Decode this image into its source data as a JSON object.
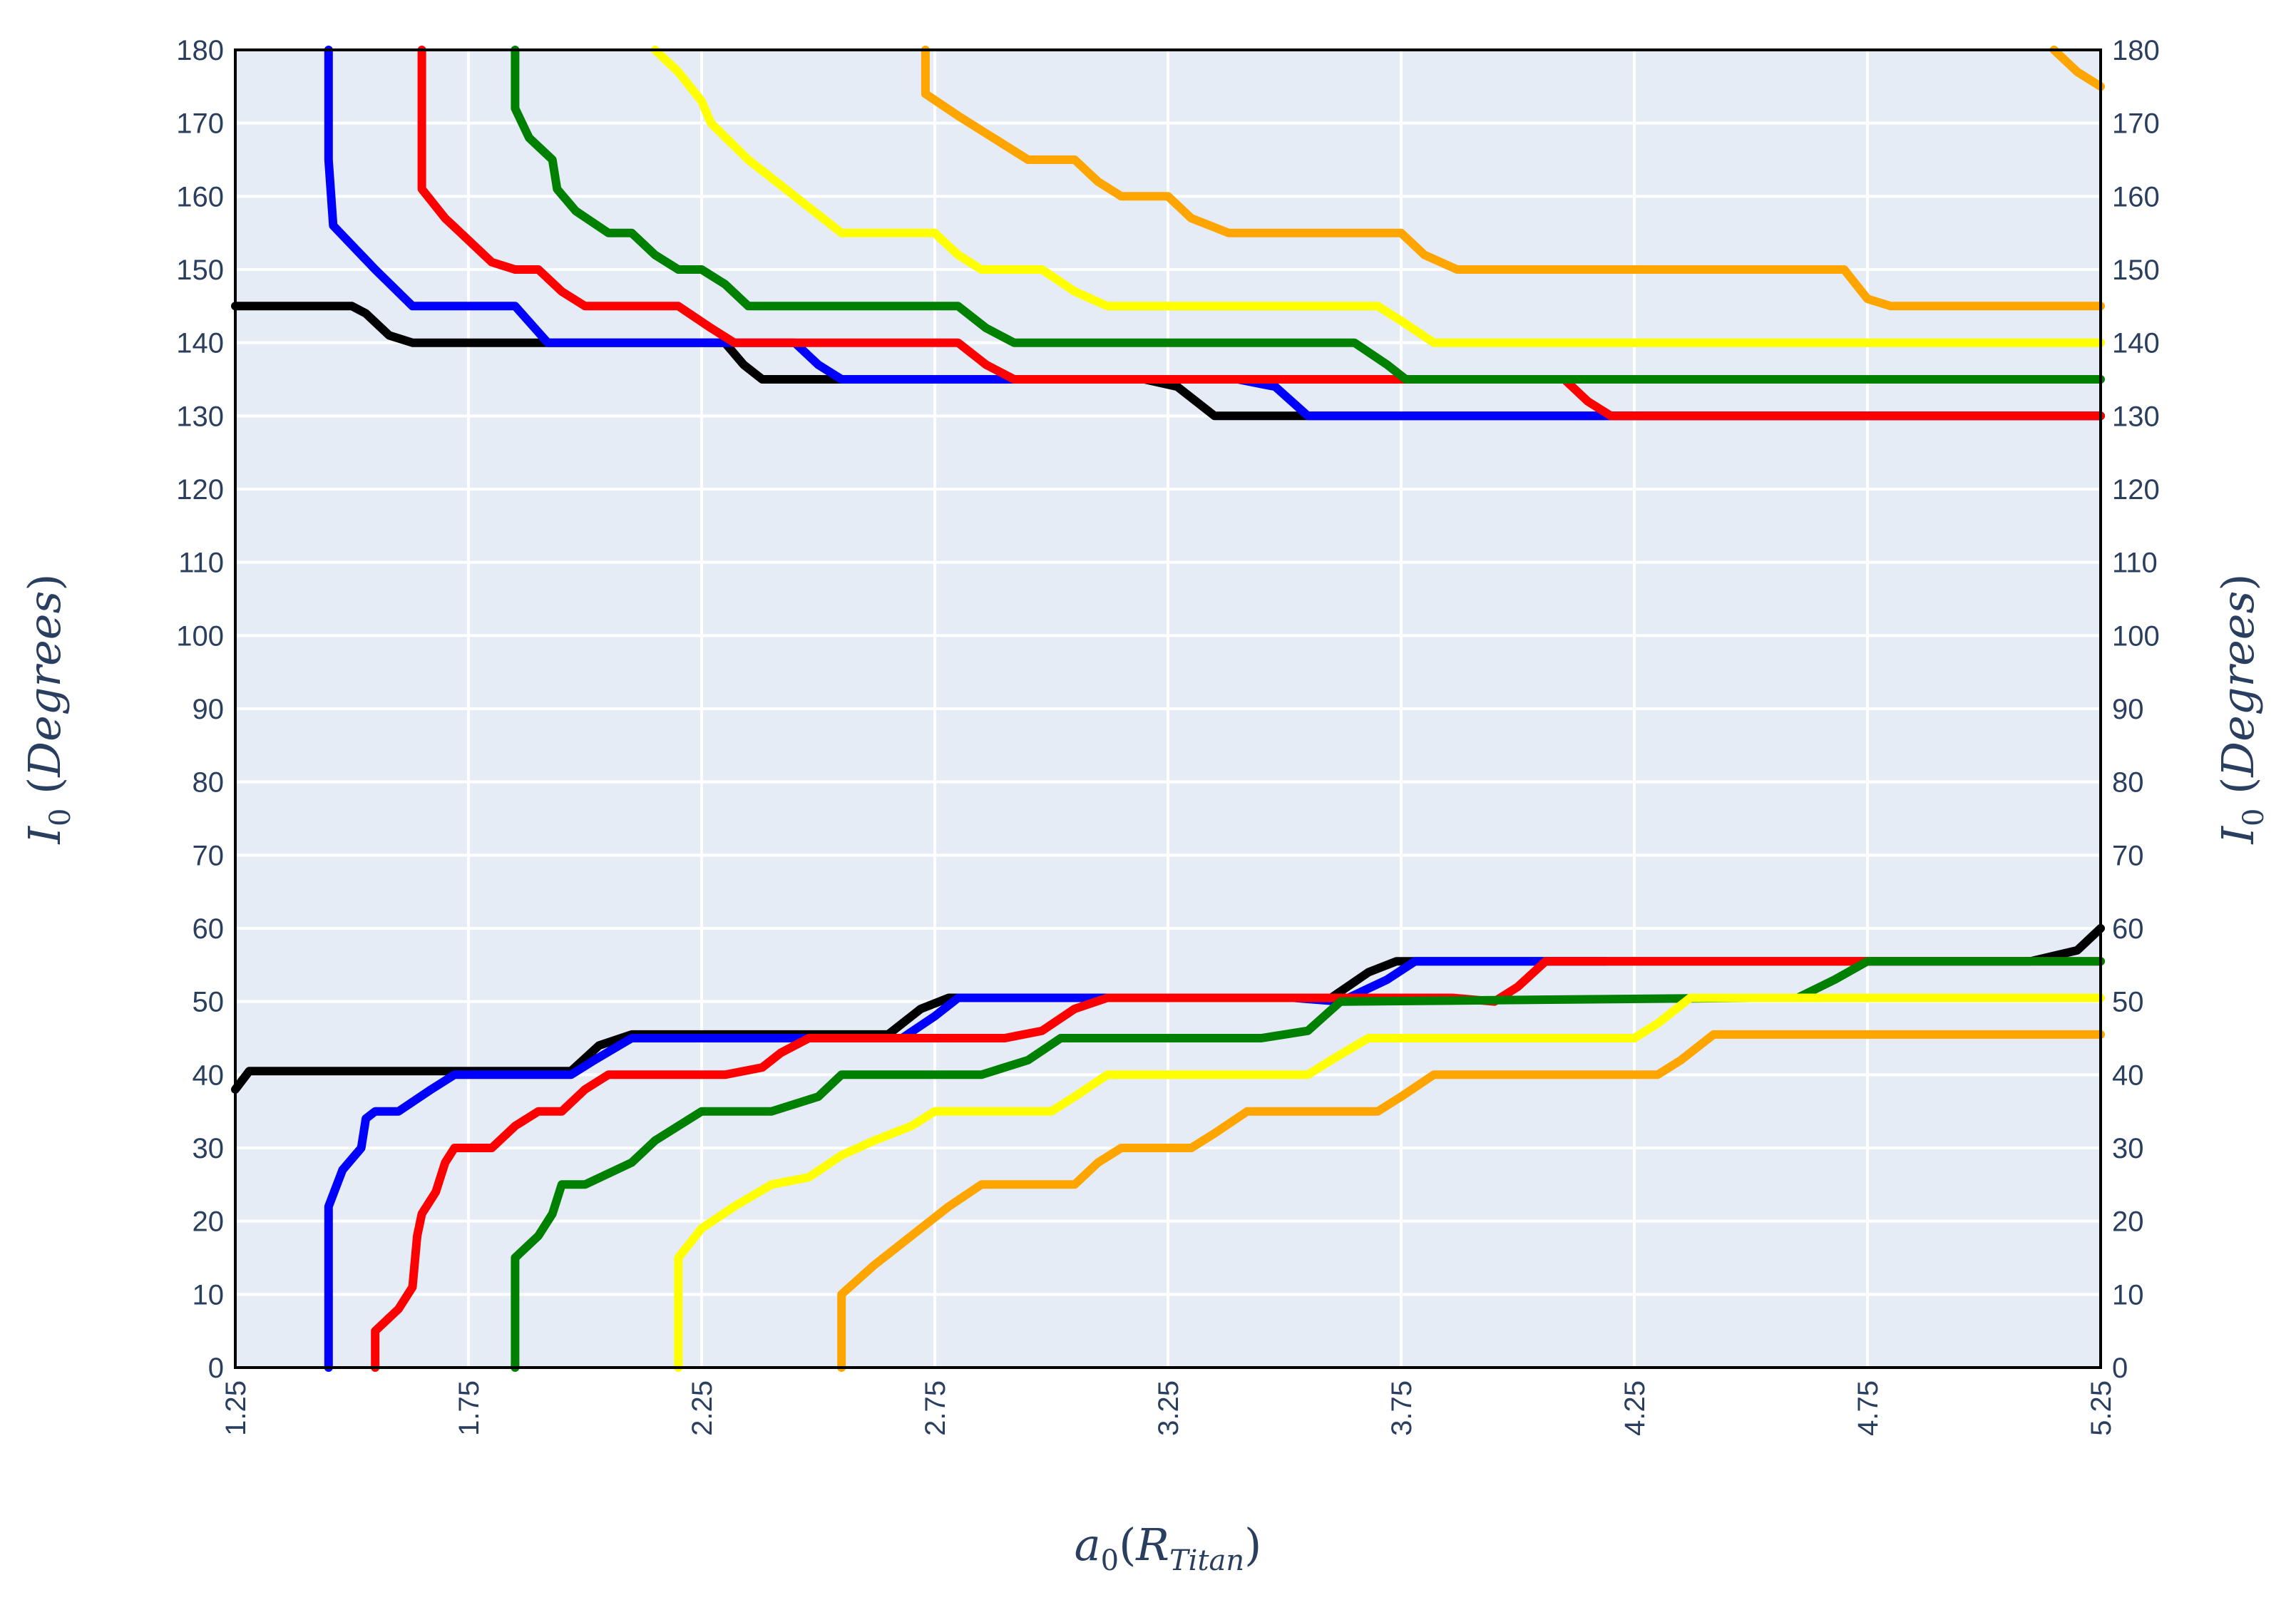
{
  "chart_data": {
    "type": "line",
    "xlabel": "a0(RTitan)",
    "ylabel": "I0 (Degrees)",
    "xlim": [
      1.25,
      5.25
    ],
    "ylim": [
      0,
      180
    ],
    "x_ticks": [
      "1.25",
      "1.75",
      "2.25",
      "2.75",
      "3.25",
      "3.75",
      "4.25",
      "4.75",
      "5.25"
    ],
    "y_ticks": [
      "0",
      "10",
      "20",
      "30",
      "40",
      "50",
      "60",
      "70",
      "80",
      "90",
      "100",
      "110",
      "120",
      "130",
      "140",
      "150",
      "160",
      "170",
      "180"
    ],
    "grid": true,
    "legend": "none",
    "plot_background": "#e5ecf6",
    "axis_text_color": "#2a3f5f",
    "series": [
      {
        "color": "#000000",
        "segments": [
          [
            [
              1.25,
              145
            ],
            [
              1.5,
              145
            ],
            [
              1.53,
              144
            ],
            [
              1.58,
              141
            ],
            [
              1.63,
              140
            ],
            [
              2.0,
              140
            ],
            [
              2.3,
              140
            ],
            [
              2.34,
              137
            ],
            [
              2.38,
              135
            ],
            [
              3.2,
              135
            ],
            [
              3.27,
              134
            ],
            [
              3.35,
              130
            ],
            [
              5.25,
              130
            ]
          ],
          [
            [
              1.25,
              38
            ],
            [
              1.28,
              40.5
            ],
            [
              1.97,
              40.5
            ],
            [
              2.03,
              44
            ],
            [
              2.1,
              45.5
            ],
            [
              2.65,
              45.5
            ],
            [
              2.72,
              49
            ],
            [
              2.78,
              50.5
            ],
            [
              3.6,
              50.5
            ],
            [
              3.68,
              54
            ],
            [
              3.74,
              55.5
            ],
            [
              5.1,
              55.5
            ],
            [
              5.2,
              57
            ],
            [
              5.25,
              60
            ]
          ]
        ]
      },
      {
        "color": "#0000ff",
        "segments": [
          [
            [
              1.45,
              180
            ],
            [
              1.45,
              165
            ],
            [
              1.46,
              156
            ],
            [
              1.55,
              150
            ],
            [
              1.63,
              145
            ],
            [
              1.85,
              145
            ],
            [
              1.92,
              140
            ],
            [
              2.35,
              140
            ],
            [
              2.45,
              140
            ],
            [
              2.5,
              137
            ],
            [
              2.55,
              135
            ],
            [
              3.4,
              135
            ],
            [
              3.48,
              134
            ],
            [
              3.55,
              130
            ],
            [
              5.25,
              130
            ]
          ],
          [
            [
              1.45,
              0
            ],
            [
              1.45,
              22
            ],
            [
              1.48,
              27
            ],
            [
              1.52,
              30
            ],
            [
              1.53,
              34
            ],
            [
              1.55,
              35
            ],
            [
              1.6,
              35
            ],
            [
              1.67,
              38
            ],
            [
              1.72,
              40
            ],
            [
              1.97,
              40
            ],
            [
              2.02,
              42
            ],
            [
              2.1,
              45
            ],
            [
              2.6,
              45
            ],
            [
              2.68,
              45
            ],
            [
              2.75,
              48
            ],
            [
              2.8,
              50.5
            ],
            [
              3.52,
              50.5
            ],
            [
              3.62,
              50
            ],
            [
              3.72,
              53
            ],
            [
              3.78,
              55.5
            ],
            [
              4.19,
              55.5
            ]
          ]
        ]
      },
      {
        "color": "#ff0000",
        "segments": [
          [
            [
              1.65,
              180
            ],
            [
              1.65,
              161
            ],
            [
              1.7,
              157
            ],
            [
              1.75,
              154
            ],
            [
              1.8,
              151
            ],
            [
              1.85,
              150
            ],
            [
              1.9,
              150
            ],
            [
              1.95,
              147
            ],
            [
              2.0,
              145
            ],
            [
              2.2,
              145
            ],
            [
              2.27,
              142
            ],
            [
              2.32,
              140
            ],
            [
              2.8,
              140
            ],
            [
              2.86,
              137
            ],
            [
              2.92,
              135
            ],
            [
              4.1,
              135
            ],
            [
              4.15,
              132
            ],
            [
              4.2,
              130
            ],
            [
              5.25,
              130
            ]
          ],
          [
            [
              1.55,
              0
            ],
            [
              1.55,
              5
            ],
            [
              1.6,
              8
            ],
            [
              1.63,
              11
            ],
            [
              1.64,
              18
            ],
            [
              1.65,
              21
            ],
            [
              1.68,
              24
            ],
            [
              1.7,
              28
            ],
            [
              1.72,
              30
            ],
            [
              1.8,
              30
            ],
            [
              1.85,
              33
            ],
            [
              1.9,
              35
            ],
            [
              1.95,
              35
            ],
            [
              2.0,
              38
            ],
            [
              2.05,
              40
            ],
            [
              2.2,
              40
            ],
            [
              2.3,
              40
            ],
            [
              2.38,
              41
            ],
            [
              2.42,
              43
            ],
            [
              2.48,
              45
            ],
            [
              2.7,
              45
            ],
            [
              2.9,
              45
            ],
            [
              2.98,
              46
            ],
            [
              3.05,
              49
            ],
            [
              3.12,
              50.5
            ],
            [
              3.6,
              50.5
            ],
            [
              3.72,
              50.5
            ],
            [
              3.86,
              50.5
            ],
            [
              3.95,
              50
            ],
            [
              4.0,
              52
            ],
            [
              4.06,
              55.5
            ],
            [
              5.25,
              55.5
            ]
          ]
        ]
      },
      {
        "color": "#008000",
        "segments": [
          [
            [
              1.85,
              180
            ],
            [
              1.85,
              172
            ],
            [
              1.88,
              168
            ],
            [
              1.93,
              165
            ],
            [
              1.94,
              161
            ],
            [
              1.98,
              158
            ],
            [
              2.05,
              155
            ],
            [
              2.1,
              155
            ],
            [
              2.15,
              152
            ],
            [
              2.2,
              150
            ],
            [
              2.25,
              150
            ],
            [
              2.3,
              148
            ],
            [
              2.35,
              145
            ],
            [
              2.8,
              145
            ],
            [
              2.86,
              142
            ],
            [
              2.92,
              140
            ],
            [
              3.65,
              140
            ],
            [
              3.72,
              137
            ],
            [
              3.76,
              135
            ],
            [
              5.25,
              135
            ]
          ],
          [
            [
              1.85,
              0
            ],
            [
              1.85,
              15
            ],
            [
              1.9,
              18
            ],
            [
              1.93,
              21
            ],
            [
              1.95,
              25
            ],
            [
              2.0,
              25
            ],
            [
              2.1,
              28
            ],
            [
              2.15,
              31
            ],
            [
              2.25,
              35
            ],
            [
              2.4,
              35
            ],
            [
              2.5,
              37
            ],
            [
              2.55,
              40
            ],
            [
              2.85,
              40
            ],
            [
              2.95,
              42
            ],
            [
              3.02,
              45
            ],
            [
              3.45,
              45
            ],
            [
              3.55,
              46
            ],
            [
              3.62,
              50
            ],
            [
              4.5,
              50.5
            ],
            [
              4.6,
              50.5
            ],
            [
              4.68,
              53
            ],
            [
              4.75,
              55.5
            ],
            [
              5.25,
              55.5
            ]
          ]
        ]
      },
      {
        "color": "#ffff00",
        "segments": [
          [
            [
              2.15,
              180
            ],
            [
              2.2,
              177
            ],
            [
              2.25,
              173
            ],
            [
              2.27,
              170
            ],
            [
              2.35,
              165
            ],
            [
              2.45,
              160
            ],
            [
              2.55,
              155
            ],
            [
              2.75,
              155
            ],
            [
              2.8,
              152
            ],
            [
              2.85,
              150
            ],
            [
              2.98,
              150
            ],
            [
              3.05,
              147
            ],
            [
              3.12,
              145
            ],
            [
              3.7,
              145
            ],
            [
              3.75,
              143
            ],
            [
              3.82,
              140
            ],
            [
              5.25,
              140
            ]
          ],
          [
            [
              2.2,
              0
            ],
            [
              2.2,
              15
            ],
            [
              2.25,
              19
            ],
            [
              2.32,
              22
            ],
            [
              2.4,
              25
            ],
            [
              2.48,
              26
            ],
            [
              2.55,
              29
            ],
            [
              2.62,
              31
            ],
            [
              2.7,
              33
            ],
            [
              2.75,
              35
            ],
            [
              3.0,
              35
            ],
            [
              3.05,
              37
            ],
            [
              3.12,
              40
            ],
            [
              3.55,
              40
            ],
            [
              3.6,
              42
            ],
            [
              3.68,
              45
            ],
            [
              4.25,
              45
            ],
            [
              4.3,
              47
            ],
            [
              4.37,
              50.5
            ],
            [
              5.25,
              50.5
            ]
          ]
        ]
      },
      {
        "color": "#ffa500",
        "segments": [
          [
            [
              2.73,
              180
            ],
            [
              2.73,
              174
            ],
            [
              2.8,
              171
            ],
            [
              2.9,
              167
            ],
            [
              2.95,
              165
            ],
            [
              3.05,
              165
            ],
            [
              3.1,
              162
            ],
            [
              3.15,
              160
            ],
            [
              3.25,
              160
            ],
            [
              3.3,
              157
            ],
            [
              3.38,
              155
            ],
            [
              3.75,
              155
            ],
            [
              3.8,
              152
            ],
            [
              3.87,
              150
            ],
            [
              4.6,
              150
            ],
            [
              4.7,
              150
            ],
            [
              4.75,
              146
            ],
            [
              4.8,
              145
            ],
            [
              5.25,
              145
            ]
          ],
          [
            [
              2.55,
              0
            ],
            [
              2.55,
              10
            ],
            [
              2.62,
              14
            ],
            [
              2.7,
              18
            ],
            [
              2.78,
              22
            ],
            [
              2.85,
              25
            ],
            [
              3.05,
              25
            ],
            [
              3.1,
              28
            ],
            [
              3.15,
              30
            ],
            [
              3.3,
              30
            ],
            [
              3.35,
              32
            ],
            [
              3.42,
              35
            ],
            [
              3.7,
              35
            ],
            [
              3.75,
              37
            ],
            [
              3.82,
              40
            ],
            [
              4.3,
              40
            ],
            [
              4.35,
              42
            ],
            [
              4.42,
              45.5
            ],
            [
              5.25,
              45.5
            ]
          ],
          [
            [
              5.15,
              180
            ],
            [
              5.2,
              177
            ],
            [
              5.25,
              175
            ]
          ]
        ]
      }
    ]
  }
}
